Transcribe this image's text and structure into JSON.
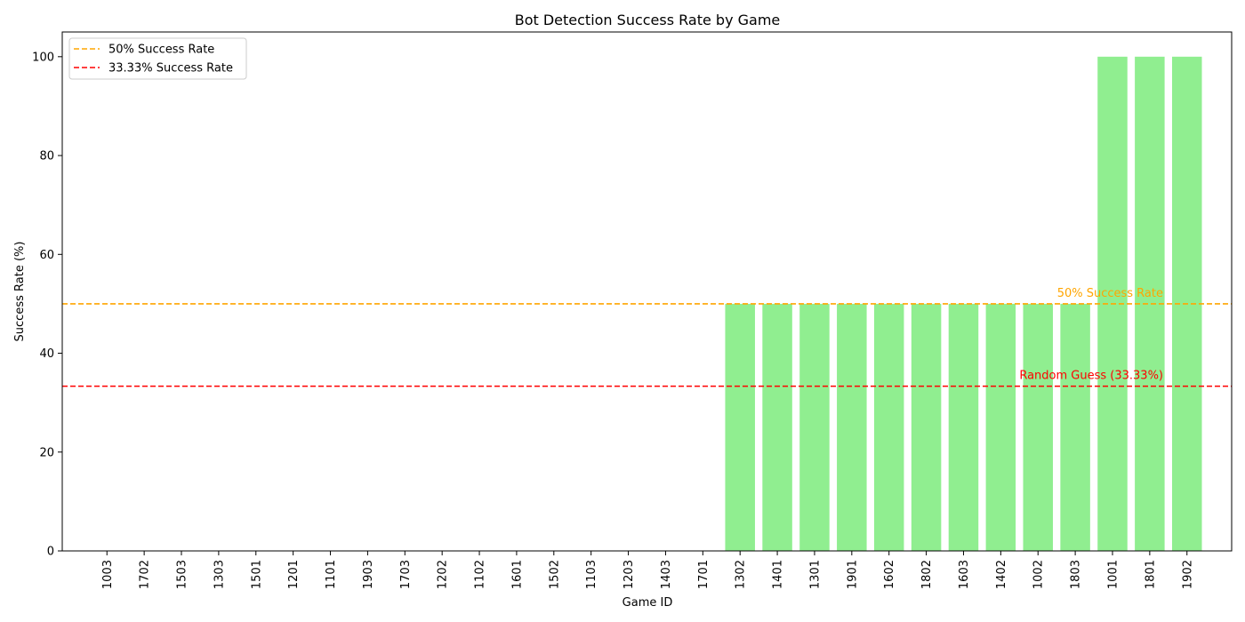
{
  "chart_data": {
    "type": "bar",
    "title": "Bot Detection Success Rate by Game",
    "xlabel": "Game ID",
    "ylabel": "Success Rate (%)",
    "ylim": [
      0,
      105
    ],
    "yticks": [
      0,
      20,
      40,
      60,
      80,
      100
    ],
    "bar_color": "#90ee90",
    "categories": [
      "1003",
      "1702",
      "1503",
      "1303",
      "1501",
      "1201",
      "1101",
      "1903",
      "1703",
      "1202",
      "1102",
      "1601",
      "1502",
      "1103",
      "1203",
      "1403",
      "1701",
      "1302",
      "1401",
      "1301",
      "1901",
      "1602",
      "1802",
      "1603",
      "1402",
      "1002",
      "1803",
      "1001",
      "1801",
      "1902"
    ],
    "values": [
      0,
      0,
      0,
      0,
      0,
      0,
      0,
      0,
      0,
      0,
      0,
      0,
      0,
      0,
      0,
      0,
      0,
      50,
      50,
      50,
      50,
      50,
      50,
      50,
      50,
      50,
      50,
      100,
      100,
      100
    ],
    "reference_lines": [
      {
        "value": 50,
        "color": "#ffa500",
        "legend": "50% Success Rate",
        "annotation": "50% Success Rate"
      },
      {
        "value": 33.33,
        "color": "#ff0000",
        "legend": "33.33% Success Rate",
        "annotation": "Random Guess (33.33%)"
      }
    ],
    "legend_position": "top-left",
    "grid": false
  }
}
